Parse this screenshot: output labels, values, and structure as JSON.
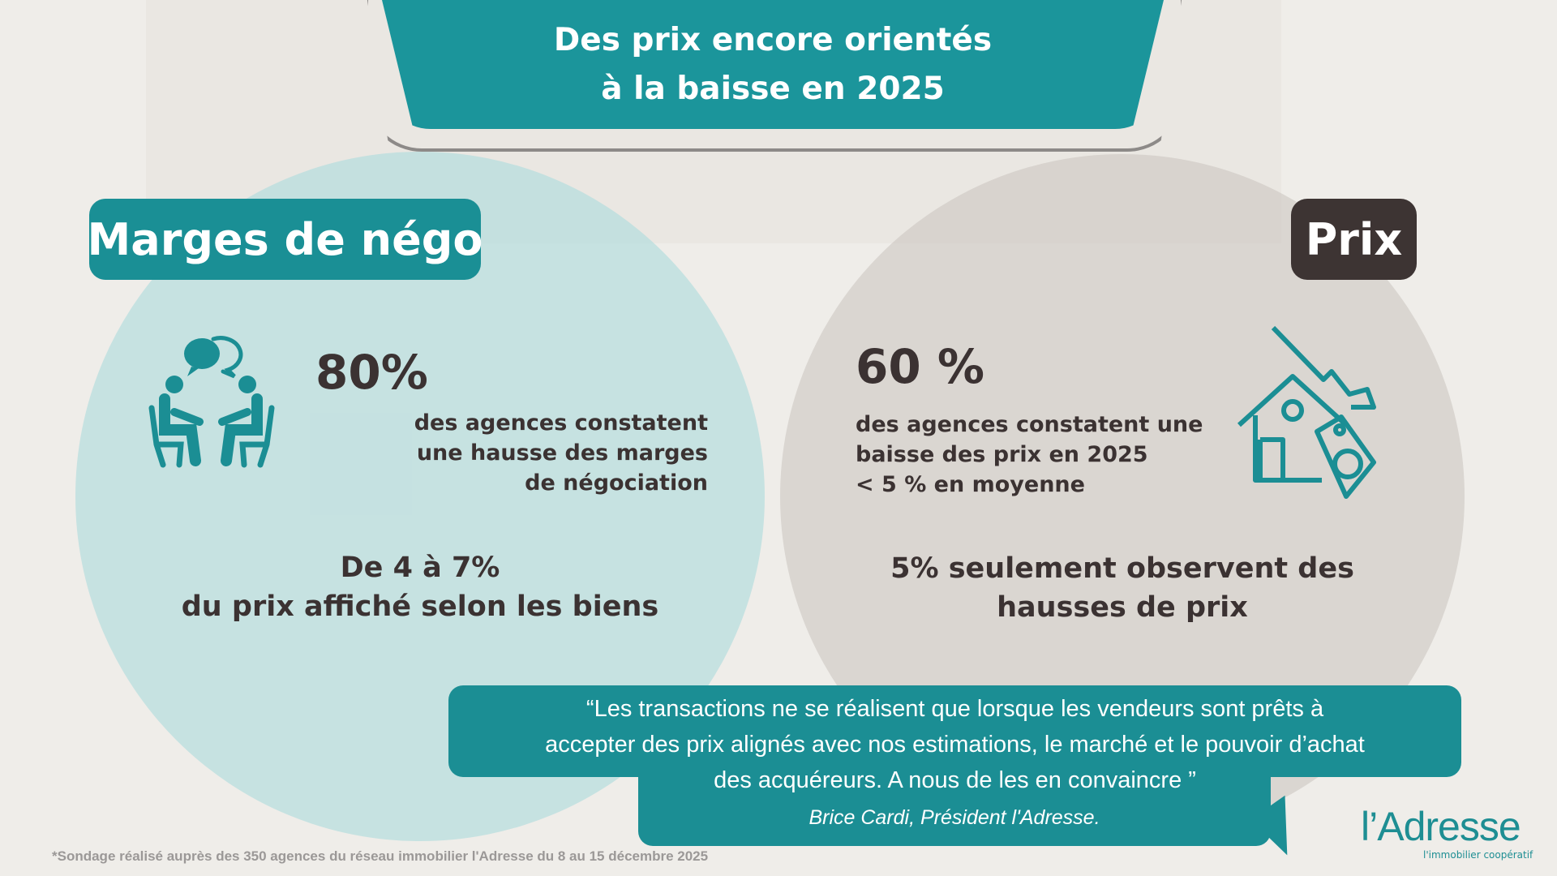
{
  "title": {
    "line1": "Des prix encore orientés",
    "line2": "à la baisse en 2025"
  },
  "left": {
    "label": "Marges de négo",
    "stat": "80%",
    "desc": [
      "des agences constatent",
      "une hausse des marges",
      "de négociation"
    ],
    "sub": [
      "De 4 à 7%",
      "du prix affiché selon les biens"
    ],
    "icon": "negotiation-people-icon"
  },
  "right": {
    "label": "Prix",
    "stat": "60 %",
    "desc": [
      "des agences constatent une",
      "baisse des prix en 2025",
      "< 5 % en moyenne"
    ],
    "sub": [
      "5% seulement observent des",
      "hausses de prix"
    ],
    "icon": "house-price-down-icon"
  },
  "quote": {
    "lines": [
      "“Les transactions ne se réalisent que lorsque les vendeurs sont prêts à",
      "accepter des prix alignés avec nos estimations, le marché et le pouvoir d’achat",
      "des acquéreurs. A nous de les en convaincre ”"
    ],
    "author": "Brice Cardi, Président l'Adresse."
  },
  "footnote": "*Sondage réalisé auprès des 350 agences du réseau immobilier l'Adresse du 8 au 15 décembre 2025",
  "logo": {
    "name": "l’Adresse",
    "tagline": "l'immobilier coopératif"
  },
  "colors": {
    "teal": "#1b8e94",
    "dark": "#3d3433",
    "text": "#3b3232"
  }
}
